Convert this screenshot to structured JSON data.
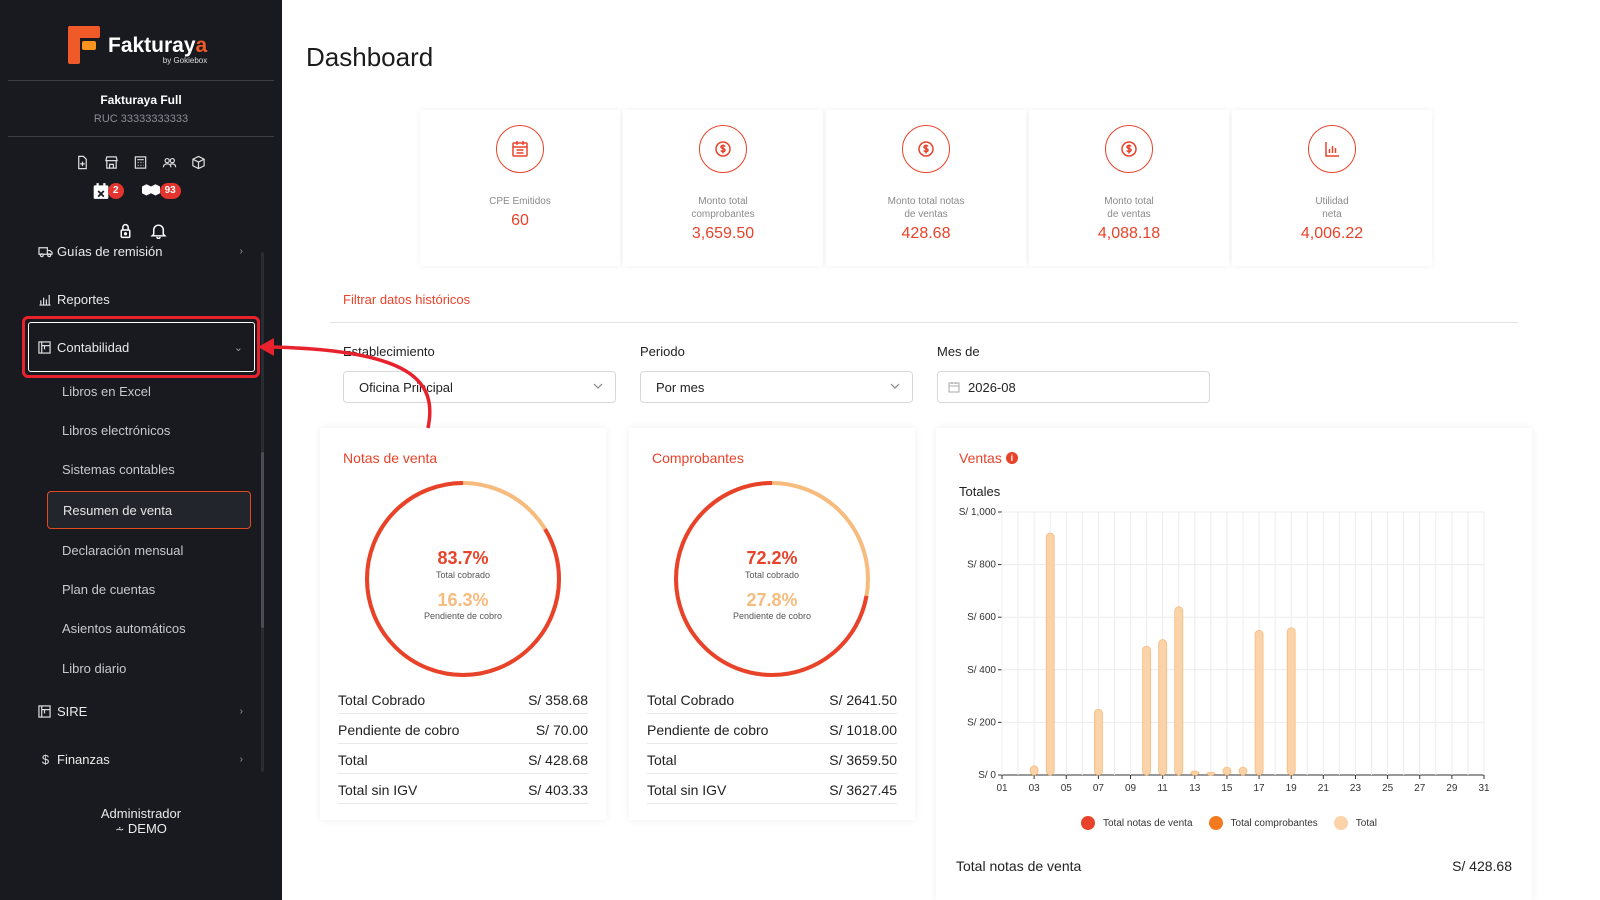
{
  "brand": {
    "name_part1": "Fakturay",
    "name_part2": "a",
    "by": "by Gokiebox"
  },
  "company": {
    "name": "Fakturaya Full",
    "ruc": "RUC 33333333333"
  },
  "quick_icons": [
    "document-plus-icon",
    "store-icon",
    "calculator-icon",
    "users-icon",
    "box-icon"
  ],
  "badges": [
    {
      "icon": "calendar-x-icon",
      "count": "2"
    },
    {
      "icon": "boxes-icon",
      "count": "93"
    }
  ],
  "tool_icons": [
    "lock-icon",
    "bell-icon"
  ],
  "menu": {
    "guias": "Guías de remisión",
    "reportes": "Reportes",
    "contabilidad": "Contabilidad",
    "sub_items": [
      "Libros en Excel",
      "Libros electrónicos",
      "Sistemas contables",
      "Resumen de venta",
      "Declaración mensual",
      "Plan de cuentas",
      "Asientos automáticos",
      "Libro diario"
    ],
    "sire": "SIRE",
    "finanzas": "Finanzas"
  },
  "user": {
    "role": "Administrador",
    "name": "DEMO"
  },
  "page": {
    "title": "Dashboard"
  },
  "stats": [
    {
      "label1": "CPE Emitidos",
      "label2": "",
      "value": "60"
    },
    {
      "label1": "Monto total",
      "label2": "comprobantes",
      "value": "3,659.50"
    },
    {
      "label1": "Monto total notas",
      "label2": "de ventas",
      "value": "428.68"
    },
    {
      "label1": "Monto total",
      "label2": "de ventas",
      "value": "4,088.18"
    },
    {
      "label1": "Utilidad",
      "label2": "neta",
      "value": "4,006.22"
    }
  ],
  "filters": {
    "title": "Filtrar datos históricos",
    "establecimiento": {
      "label": "Establecimiento",
      "value": "Oficina Principal"
    },
    "periodo": {
      "label": "Periodo",
      "value": "Por mes"
    },
    "mes": {
      "label": "Mes de",
      "value": "2026-08"
    }
  },
  "notas_venta": {
    "title": "Notas de venta",
    "cobrado_pct": "83.7%",
    "cobrado_label": "Total cobrado",
    "pendiente_pct": "16.3%",
    "pendiente_label": "Pendiente de cobro",
    "cobrado_fraction": 0.837,
    "rows": [
      {
        "k": "Total Cobrado",
        "v": "S/ 358.68"
      },
      {
        "k": "Pendiente de cobro",
        "v": "S/ 70.00"
      },
      {
        "k": "Total",
        "v": "S/ 428.68"
      },
      {
        "k": "Total sin IGV",
        "v": "S/ 403.33"
      }
    ]
  },
  "comprobantes": {
    "title": "Comprobantes",
    "cobrado_pct": "72.2%",
    "cobrado_label": "Total cobrado",
    "pendiente_pct": "27.8%",
    "pendiente_label": "Pendiente de cobro",
    "cobrado_fraction": 0.722,
    "rows": [
      {
        "k": "Total Cobrado",
        "v": "S/ 2641.50"
      },
      {
        "k": "Pendiente de cobro",
        "v": "S/ 1018.00"
      },
      {
        "k": "Total",
        "v": "S/ 3659.50"
      },
      {
        "k": "Total sin IGV",
        "v": "S/ 3627.45"
      }
    ]
  },
  "ventas": {
    "title": "Ventas",
    "subtitle": "Totales",
    "total_label": "Total notas de venta",
    "total_value": "S/ 428.68"
  },
  "colors": {
    "accent": "#e8432a",
    "light": "#f7bb7e",
    "bar": "#fbd3a8",
    "sidebar": "#181a20"
  },
  "chart_data": {
    "type": "bar",
    "title": "Totales",
    "x": [
      "01",
      "02",
      "03",
      "04",
      "05",
      "06",
      "07",
      "08",
      "09",
      "10",
      "11",
      "12",
      "13",
      "14",
      "15",
      "16",
      "17",
      "18",
      "19",
      "20",
      "21",
      "22",
      "23",
      "24",
      "25",
      "26",
      "27",
      "28",
      "29",
      "30",
      "31"
    ],
    "x_tick_labels": [
      "01",
      "03",
      "05",
      "07",
      "09",
      "11",
      "13",
      "15",
      "17",
      "19",
      "21",
      "23",
      "25",
      "27",
      "29",
      "31"
    ],
    "y_tick_labels": [
      "S/ 0",
      "S/ 200",
      "S/ 400",
      "S/ 600",
      "S/ 800",
      "S/ 1,000"
    ],
    "ylim": [
      0,
      1000
    ],
    "legend": [
      "Total notas de venta",
      "Total comprobantes",
      "Total"
    ],
    "legend_colors": [
      "#e8432a",
      "#f47a20",
      "#fbd3a8"
    ],
    "legend_position": "bottom",
    "series": [
      {
        "name": "Total",
        "values": [
          0,
          0,
          35,
          920,
          0,
          0,
          250,
          0,
          0,
          490,
          515,
          640,
          15,
          10,
          30,
          30,
          550,
          0,
          560,
          0,
          0,
          0,
          0,
          0,
          0,
          0,
          0,
          0,
          0,
          0,
          0
        ]
      }
    ]
  }
}
